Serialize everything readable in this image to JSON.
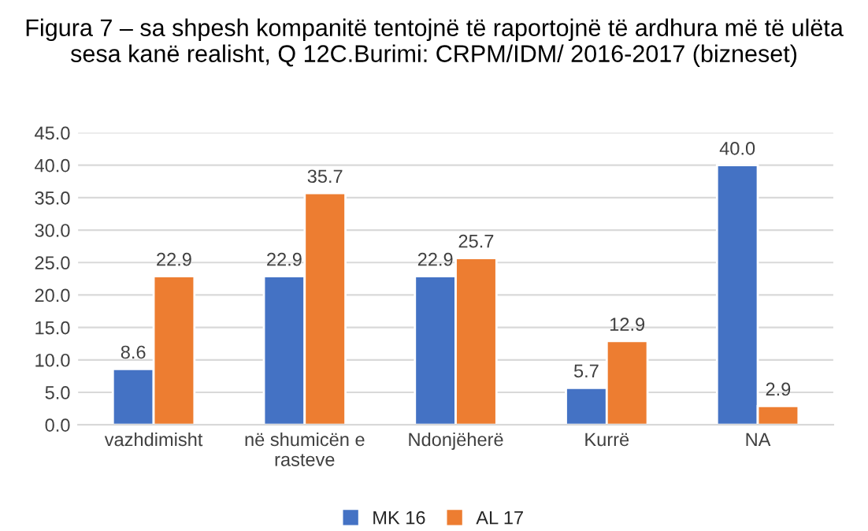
{
  "chart_data": {
    "type": "bar",
    "title": "Figura 7 – sa shpesh kompanitë tentojnë të raportojnë të ardhura më të ulëta sesa kanë realisht, Q 12C.Burimi: CRPM/IDM/ 2016-2017 (bizneset)",
    "categories": [
      "vazhdimisht",
      "në shumicën e rasteve",
      "Ndonjëherë",
      "Kurrë",
      "NA"
    ],
    "series": [
      {
        "name": "MK 16",
        "color": "#4472c4",
        "values": [
          8.6,
          22.9,
          22.9,
          5.7,
          40.0
        ],
        "value_labels": [
          "8.6",
          "22.9",
          "22.9",
          "5.7",
          "40.0"
        ]
      },
      {
        "name": "AL 17",
        "color": "#ed7d31",
        "values": [
          22.9,
          35.7,
          25.7,
          12.9,
          2.9
        ],
        "value_labels": [
          "22.9",
          "35.7",
          "25.7",
          "12.9",
          "2.9"
        ]
      }
    ],
    "ylim": [
      0,
      45
    ],
    "yticks": [
      {
        "value": 0,
        "label": "0.0"
      },
      {
        "value": 5,
        "label": "5.0"
      },
      {
        "value": 10,
        "label": "10.0"
      },
      {
        "value": 15,
        "label": "15.0"
      },
      {
        "value": 20,
        "label": "20.0"
      },
      {
        "value": 25,
        "label": "25.0"
      },
      {
        "value": 30,
        "label": "30.0"
      },
      {
        "value": 35,
        "label": "35.0"
      },
      {
        "value": 40,
        "label": "40.0"
      },
      {
        "value": 45,
        "label": "45.0"
      }
    ],
    "grid": "y",
    "legend": "bottom"
  }
}
